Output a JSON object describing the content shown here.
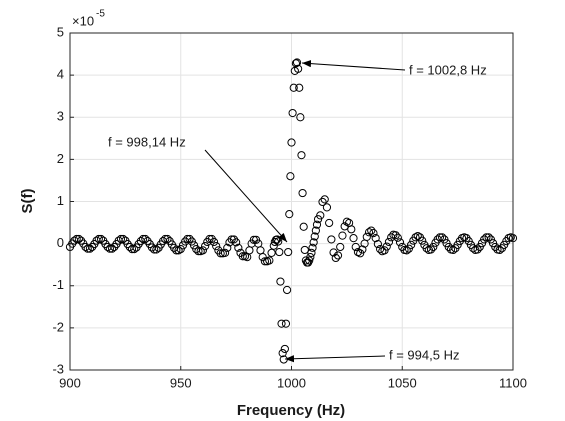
{
  "chart_data": {
    "type": "scatter",
    "x_label": "Frequency (Hz)",
    "y_label": "S(f)",
    "y_multiplier": "×10",
    "y_multiplier_exponent": "-5",
    "color": "#000000",
    "grid": true,
    "xlim": [
      900,
      1100
    ],
    "xticks": [
      900,
      950,
      1000,
      1050,
      1100
    ],
    "ylim": [
      -3,
      5
    ],
    "yticks": [
      -3,
      -2,
      -1,
      0,
      1,
      2,
      3,
      4,
      5
    ],
    "annotations": [
      "f = 1002,8 Hz",
      "f = 998,14 Hz",
      "f = 994,5 Hz"
    ],
    "x": [
      900,
      901,
      902,
      903,
      904,
      905,
      906,
      907,
      908,
      909,
      910,
      911,
      912,
      913,
      914,
      915,
      916,
      917,
      918,
      919,
      920,
      921,
      922,
      923,
      924,
      925,
      926,
      927,
      928,
      929,
      930,
      931,
      932,
      933,
      934,
      935,
      936,
      937,
      938,
      939,
      940,
      941,
      942,
      943,
      944,
      945,
      946,
      947,
      948,
      949,
      950,
      951,
      952,
      953,
      954,
      955,
      956,
      957,
      958,
      959,
      960,
      961,
      962,
      963,
      964,
      965,
      966,
      967,
      968,
      969,
      970,
      971,
      972,
      973,
      974,
      975,
      976,
      977,
      978,
      979,
      980,
      981,
      982,
      983,
      984,
      985,
      986,
      987,
      988,
      989,
      990,
      991,
      992,
      992.5,
      993,
      993.5,
      994,
      994.5,
      995,
      995.5,
      996,
      996.5,
      997,
      997.5,
      998,
      998.5,
      999,
      999.5,
      1000,
      1000.5,
      1001,
      1001.5,
      1002,
      1002.5,
      1003,
      1003.5,
      1004,
      1004.5,
      1005,
      1005.5,
      1006,
      1006.5,
      1007,
      1007.5,
      1008,
      1008.5,
      1009,
      1009.5,
      1010,
      1010.5,
      1011,
      1011.5,
      1012,
      1013,
      1014,
      1015,
      1016,
      1017,
      1018,
      1019,
      1020,
      1021,
      1022,
      1023,
      1024,
      1025,
      1026,
      1027,
      1028,
      1029,
      1030,
      1031,
      1032,
      1033,
      1034,
      1035,
      1036,
      1037,
      1038,
      1039,
      1040,
      1041,
      1042,
      1043,
      1044,
      1045,
      1046,
      1047,
      1048,
      1049,
      1050,
      1051,
      1052,
      1053,
      1054,
      1055,
      1056,
      1057,
      1058,
      1059,
      1060,
      1061,
      1062,
      1063,
      1064,
      1065,
      1066,
      1067,
      1068,
      1069,
      1070,
      1071,
      1072,
      1073,
      1074,
      1075,
      1076,
      1077,
      1078,
      1079,
      1080,
      1081,
      1082,
      1083,
      1084,
      1085,
      1086,
      1087,
      1088,
      1089,
      1090,
      1091,
      1092,
      1093,
      1094,
      1095,
      1096,
      1097,
      1098,
      1099,
      1100
    ],
    "values": [
      -0.08,
      0,
      0.07,
      0.11,
      0.11,
      0.07,
      0,
      -0.08,
      -0.12,
      -0.12,
      -0.08,
      -0.01,
      0.07,
      0.11,
      0.11,
      0.07,
      -0.01,
      -0.08,
      -0.12,
      -0.12,
      -0.08,
      -0.01,
      0.07,
      0.11,
      0.11,
      0.07,
      -0.01,
      -0.08,
      -0.13,
      -0.13,
      -0.09,
      -0.01,
      0.06,
      0.11,
      0.11,
      0.06,
      -0.01,
      -0.09,
      -0.14,
      -0.14,
      -0.1,
      -0.02,
      0.06,
      0.11,
      0.11,
      0.06,
      -0.02,
      -0.1,
      -0.16,
      -0.16,
      -0.13,
      -0.04,
      0.05,
      0.11,
      0.11,
      0.05,
      -0.04,
      -0.13,
      -0.18,
      -0.18,
      -0.16,
      -0.06,
      0.04,
      0.11,
      0.11,
      0.04,
      -0.06,
      -0.16,
      -0.23,
      -0.23,
      -0.22,
      -0.1,
      0.03,
      0.1,
      0.1,
      0.03,
      -0.1,
      -0.22,
      -0.3,
      -0.3,
      -0.32,
      -0.16,
      0,
      0.09,
      0.09,
      0,
      -0.16,
      -0.32,
      -0.42,
      -0.42,
      -0.4,
      -0.22,
      -0.05,
      0.04,
      0.09,
      0.1,
      0.05,
      -0.2,
      -0.9,
      -1.9,
      -2.6,
      -2.75,
      -2.5,
      -1.9,
      -1.1,
      -0.2,
      0.7,
      1.6,
      2.4,
      3.1,
      3.7,
      4.1,
      4.28,
      4.3,
      4.15,
      3.7,
      3.0,
      2.1,
      1.2,
      0.4,
      -0.15,
      -0.4,
      -0.45,
      -0.45,
      -0.4,
      -0.32,
      -0.22,
      -0.1,
      0.03,
      0.17,
      0.31,
      0.45,
      0.58,
      0.67,
      0.99,
      1.05,
      0.86,
      0.49,
      0.1,
      -0.21,
      -0.34,
      -0.28,
      -0.08,
      0.19,
      0.41,
      0.52,
      0.49,
      0.34,
      0.13,
      -0.08,
      -0.2,
      -0.23,
      -0.14,
      0,
      0.16,
      0.27,
      0.31,
      0.25,
      0.13,
      -0.01,
      -0.13,
      -0.18,
      -0.16,
      -0.07,
      0.04,
      0.15,
      0.21,
      0.2,
      0.14,
      0.03,
      -0.08,
      -0.15,
      -0.16,
      -0.12,
      -0.03,
      0.07,
      0.15,
      0.18,
      0.15,
      0.07,
      -0.03,
      -0.11,
      -0.15,
      -0.14,
      -0.08,
      0.02,
      0.1,
      0.15,
      0.15,
      0.1,
      0.01,
      -0.08,
      -0.14,
      -0.15,
      -0.11,
      -0.03,
      0.06,
      0.13,
      0.15,
      0.13,
      0.06,
      -0.03,
      -0.11,
      -0.15,
      -0.14,
      -0.08,
      0.01,
      0.1,
      0.15,
      0.15,
      0.1,
      0.01,
      -0.08,
      -0.14,
      -0.15,
      -0.11,
      -0.03,
      0.06,
      0.13,
      0.15,
      0.13
    ]
  }
}
